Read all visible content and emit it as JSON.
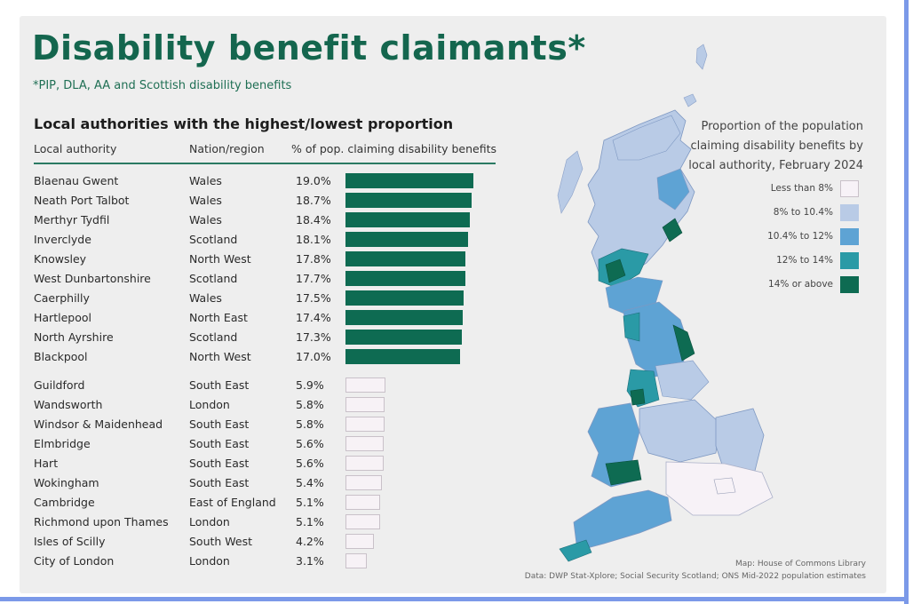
{
  "heading": {
    "title": "Disability benefit claimants*",
    "subtitle": "*PIP, DLA, AA and Scottish disability benefits",
    "section_title": "Local authorities with the highest/lowest proportion"
  },
  "table": {
    "columns": [
      "Local authority",
      "Nation/region",
      "% of pop. claiming disability benefits"
    ]
  },
  "legend": {
    "title_lines": [
      "Proportion of the population",
      "claiming disability benefits by",
      "local authority, February 2024"
    ],
    "items": [
      {
        "label": "Less than 8%",
        "color": "#f7f2f7"
      },
      {
        "label": "8% to 10.4%",
        "color": "#b9cbe6"
      },
      {
        "label": "10.4% to 12%",
        "color": "#5ea3d4"
      },
      {
        "label": "12% to 14%",
        "color": "#2a9aa6"
      },
      {
        "label": "14% or above",
        "color": "#0e6b52"
      }
    ]
  },
  "credits": {
    "map": "Map: House of Commons Library",
    "data": "Data: DWP Stat-Xplore; Social Security Scotland; ONS Mid-2022 population estimates"
  },
  "colors": {
    "title": "#14664e",
    "high_bar": "#0e6b52",
    "low_bar": "#f7f2f6",
    "frame_border": "#7b99e8"
  },
  "chart_data": {
    "type": "bar",
    "orientation": "horizontal",
    "title": "Local authorities with the highest/lowest proportion",
    "xlabel": "% of pop. claiming disability benefits",
    "ylabel": "Local authority",
    "xlim": [
      0,
      20
    ],
    "groups": [
      {
        "name": "highest",
        "rows": [
          {
            "authority": "Blaenau Gwent",
            "region": "Wales",
            "value": 19.0,
            "label": "19.0%"
          },
          {
            "authority": "Neath Port Talbot",
            "region": "Wales",
            "value": 18.7,
            "label": "18.7%"
          },
          {
            "authority": "Merthyr Tydfil",
            "region": "Wales",
            "value": 18.4,
            "label": "18.4%"
          },
          {
            "authority": "Inverclyde",
            "region": "Scotland",
            "value": 18.1,
            "label": "18.1%"
          },
          {
            "authority": "Knowsley",
            "region": "North West",
            "value": 17.8,
            "label": "17.8%"
          },
          {
            "authority": "West Dunbartonshire",
            "region": "Scotland",
            "value": 17.7,
            "label": "17.7%"
          },
          {
            "authority": "Caerphilly",
            "region": "Wales",
            "value": 17.5,
            "label": "17.5%"
          },
          {
            "authority": "Hartlepool",
            "region": "North East",
            "value": 17.4,
            "label": "17.4%"
          },
          {
            "authority": "North Ayrshire",
            "region": "Scotland",
            "value": 17.3,
            "label": "17.3%"
          },
          {
            "authority": "Blackpool",
            "region": "North West",
            "value": 17.0,
            "label": "17.0%"
          }
        ]
      },
      {
        "name": "lowest",
        "rows": [
          {
            "authority": "Guildford",
            "region": "South East",
            "value": 5.9,
            "label": "5.9%"
          },
          {
            "authority": "Wandsworth",
            "region": "London",
            "value": 5.8,
            "label": "5.8%"
          },
          {
            "authority": "Windsor & Maidenhead",
            "region": "South East",
            "value": 5.8,
            "label": "5.8%"
          },
          {
            "authority": "Elmbridge",
            "region": "South East",
            "value": 5.6,
            "label": "5.6%"
          },
          {
            "authority": "Hart",
            "region": "South East",
            "value": 5.6,
            "label": "5.6%"
          },
          {
            "authority": "Wokingham",
            "region": "South East",
            "value": 5.4,
            "label": "5.4%"
          },
          {
            "authority": "Cambridge",
            "region": "East of England",
            "value": 5.1,
            "label": "5.1%"
          },
          {
            "authority": "Richmond upon Thames",
            "region": "London",
            "value": 5.1,
            "label": "5.1%"
          },
          {
            "authority": "Isles of Scilly",
            "region": "South West",
            "value": 4.2,
            "label": "4.2%"
          },
          {
            "authority": "City of London",
            "region": "London",
            "value": 3.1,
            "label": "3.1%"
          }
        ]
      }
    ]
  }
}
